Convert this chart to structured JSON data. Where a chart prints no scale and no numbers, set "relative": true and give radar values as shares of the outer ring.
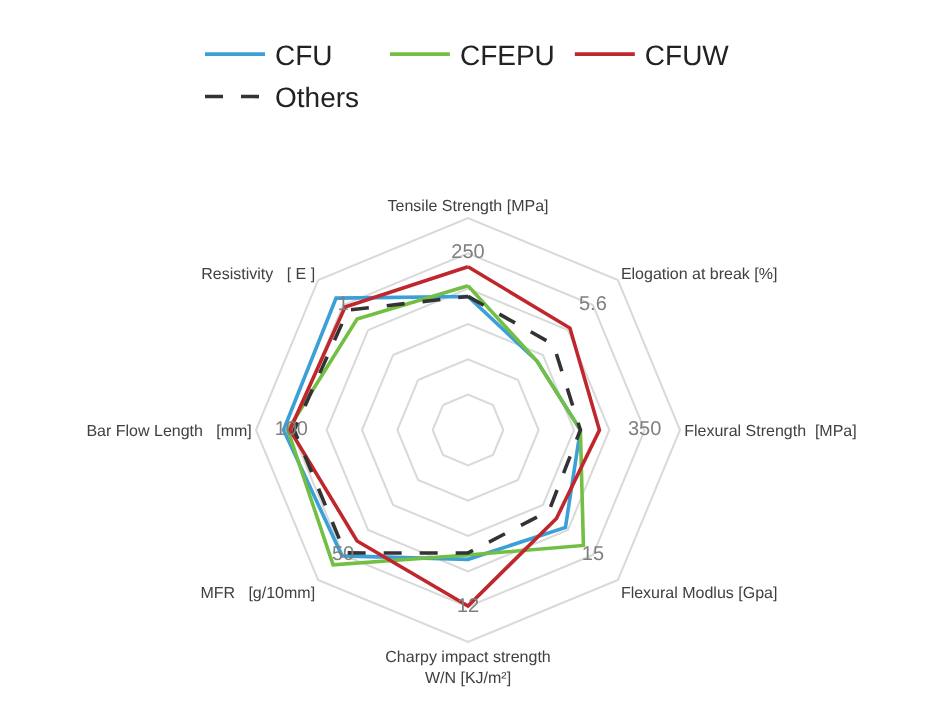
{
  "chart_data": {
    "type": "radar",
    "relative": true,
    "grid": true,
    "legend": "top",
    "line_style": "solid",
    "marker": "none",
    "categories": [
      "Tensile Strength [MPa]",
      "Elogation at break [%]",
      "Flexural Strength  [MPa]",
      "Flexural Modlus [Gpa]",
      "Charpy impact strength\nW/N [KJ/m²]",
      "MFR   [g/10mm]",
      "Bar Flow Length   [mm]",
      "Resistivity   [ E ]"
    ],
    "series": [
      {
        "name": "CFU",
        "color": "#3b9fd8",
        "values": [
          0.63,
          0.46,
          0.53,
          0.65,
          0.61,
          0.84,
          0.87,
          0.88
        ]
      },
      {
        "name": "CFEPU",
        "color": "#72bf44",
        "values": [
          0.68,
          0.46,
          0.53,
          0.77,
          0.59,
          0.9,
          0.85,
          0.74
        ]
      },
      {
        "name": "CFUW",
        "color": "#c0272d",
        "values": [
          0.77,
          0.68,
          0.62,
          0.59,
          0.83,
          0.74,
          0.84,
          0.82
        ]
      },
      {
        "name": "Others",
        "color": "#333333",
        "line_style": "dashed",
        "values": [
          0.63,
          0.57,
          0.53,
          0.54,
          0.58,
          0.82,
          0.82,
          0.8
        ]
      }
    ],
    "annotations": [
      "250",
      "5.6",
      "350",
      "15",
      "12",
      "50",
      "100",
      "1"
    ]
  }
}
